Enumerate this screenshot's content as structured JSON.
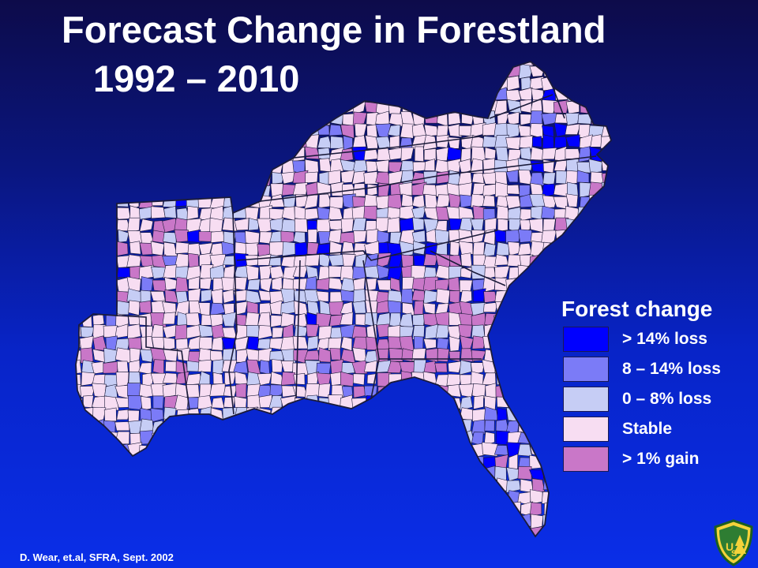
{
  "slide": {
    "title": "Forecast Change in Forestland",
    "subtitle": "1992 – 2010",
    "credit": "D. Wear, et.al, SFRA, Sept. 2002"
  },
  "legend": {
    "title": "Forest change",
    "items": [
      {
        "label": "> 14% loss",
        "color": "#0000ff"
      },
      {
        "label": "8 – 14% loss",
        "color": "#7b7bf7"
      },
      {
        "label": "0 – 8% loss",
        "color": "#c6cdf5"
      },
      {
        "label": "Stable",
        "color": "#f7ddf2"
      },
      {
        "label": "> 1% gain",
        "color": "#c977c8"
      }
    ]
  },
  "map": {
    "region": "Southern United States counties",
    "category_colors": {
      "loss_gt_14": "#0000ff",
      "loss_8_14": "#7b7bf7",
      "loss_0_8": "#c6cdf5",
      "stable": "#f7ddf2",
      "gain_gt_1": "#c977c8"
    },
    "ocean_color": "#0824c8",
    "border_color": "#1b1b3a"
  },
  "logo": {
    "icon": "forest-service-shield-icon"
  }
}
